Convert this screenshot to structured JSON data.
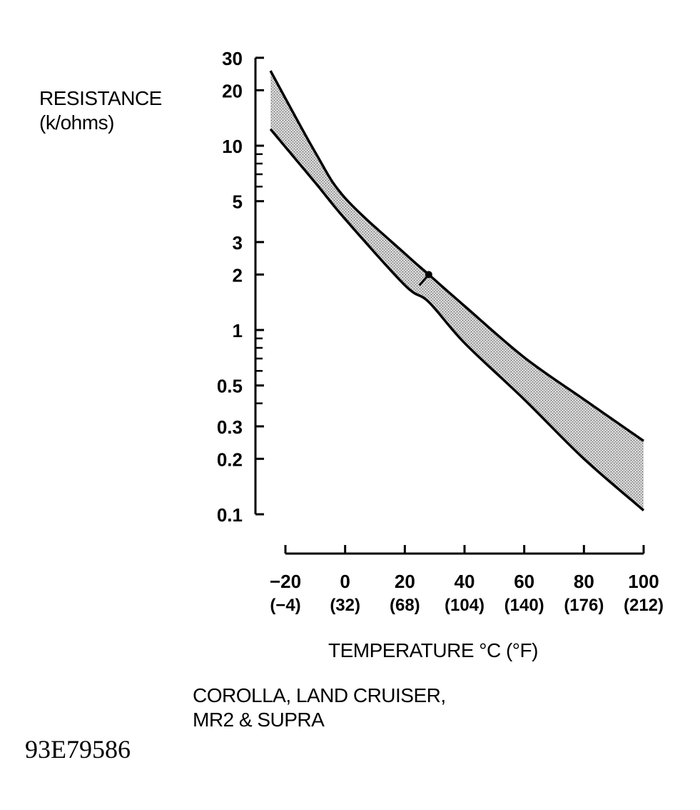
{
  "chart_data": {
    "type": "area",
    "title": "",
    "ylabel_lines": [
      "RESISTANCE",
      "(k/ohms)"
    ],
    "xlabel": "TEMPERATURE °C (°F)",
    "yscale": "log",
    "ylim": [
      0.1,
      30
    ],
    "xlim": [
      -20,
      100
    ],
    "yticks": [
      {
        "value": 30,
        "label": "30"
      },
      {
        "value": 20,
        "label": "20"
      },
      {
        "value": 10,
        "label": "10"
      },
      {
        "value": 5,
        "label": "5"
      },
      {
        "value": 3,
        "label": "3"
      },
      {
        "value": 2,
        "label": "2"
      },
      {
        "value": 1,
        "label": "1"
      },
      {
        "value": 0.5,
        "label": "0.5"
      },
      {
        "value": 0.3,
        "label": "0.3"
      },
      {
        "value": 0.2,
        "label": "0.2"
      },
      {
        "value": 0.1,
        "label": "0.1"
      }
    ],
    "yminor": [
      9,
      8,
      7,
      6,
      0.9,
      0.8,
      0.7,
      0.6,
      0.4
    ],
    "xticks": [
      {
        "value": -20,
        "label": "−20",
        "f": "(−4)"
      },
      {
        "value": 0,
        "label": "0",
        "f": "(32)"
      },
      {
        "value": 20,
        "label": "20",
        "f": "(68)"
      },
      {
        "value": 40,
        "label": "40",
        "f": "(104)"
      },
      {
        "value": 60,
        "label": "60",
        "f": "(140)"
      },
      {
        "value": 80,
        "label": "80",
        "f": "(176)"
      },
      {
        "value": 100,
        "label": "100",
        "f": "(212)"
      }
    ],
    "series": [
      {
        "name": "upper limit",
        "x": [
          -25,
          -10,
          0,
          20,
          28,
          40,
          60,
          80,
          100
        ],
        "y": [
          25.5,
          9.2,
          5.2,
          2.6,
          2.0,
          1.35,
          0.71,
          0.42,
          0.25
        ]
      },
      {
        "name": "lower limit",
        "x": [
          -25,
          -10,
          0,
          20,
          28,
          40,
          60,
          80,
          100
        ],
        "y": [
          12.3,
          6.3,
          4.0,
          1.75,
          1.42,
          0.85,
          0.42,
          0.2,
          0.105
        ]
      }
    ],
    "marker": {
      "x": 28,
      "y": 2.0
    }
  },
  "caption": {
    "line1": "COROLLA, LAND CRUISER,",
    "line2": "MR2 & SUPRA"
  },
  "figure_code": "93E79586"
}
